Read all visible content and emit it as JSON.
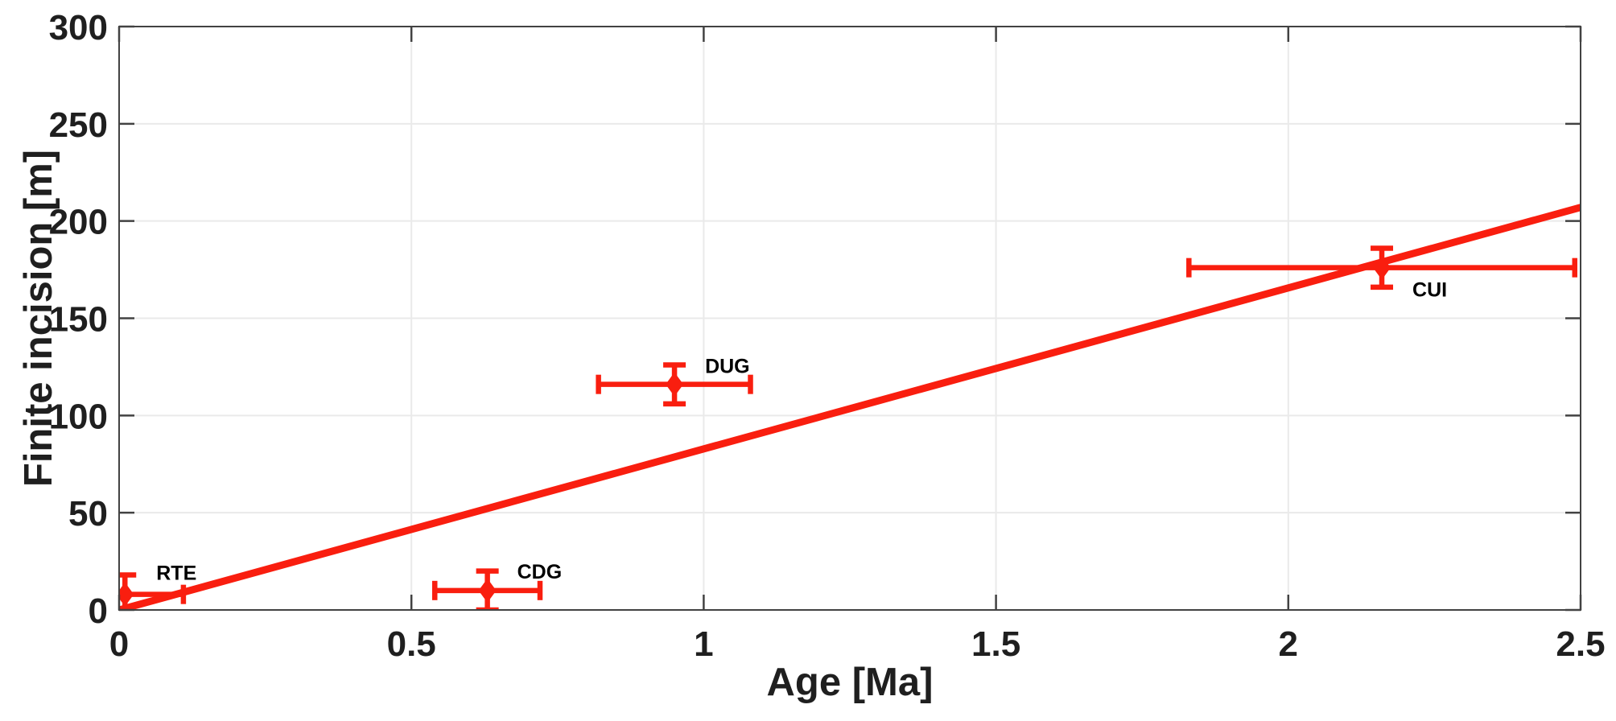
{
  "chart_data": {
    "type": "scatter",
    "title": "",
    "xlabel": "Age [Ma]",
    "ylabel": "Finite incision [m]",
    "xlim": [
      0,
      2.5
    ],
    "ylim": [
      0,
      300
    ],
    "grid": true,
    "legend": "none",
    "xticks": [
      {
        "v": 0,
        "label": "0"
      },
      {
        "v": 0.5,
        "label": "0.5"
      },
      {
        "v": 1,
        "label": "1"
      },
      {
        "v": 1.5,
        "label": "1.5"
      },
      {
        "v": 2,
        "label": "2"
      },
      {
        "v": 2.5,
        "label": "2.5"
      }
    ],
    "yticks": [
      {
        "v": 0,
        "label": "0"
      },
      {
        "v": 50,
        "label": "50"
      },
      {
        "v": 100,
        "label": "100"
      },
      {
        "v": 150,
        "label": "150"
      },
      {
        "v": 200,
        "label": "200"
      },
      {
        "v": 250,
        "label": "250"
      },
      {
        "v": 300,
        "label": "300"
      }
    ],
    "series": [
      {
        "name": "incision-sites",
        "marker": "diamond",
        "points": [
          {
            "label": "RTE",
            "x": 0.01,
            "y": 8,
            "xerr": 0.1,
            "yerr": 10,
            "label_dx": 39,
            "label_dy": -18
          },
          {
            "label": "CDG",
            "x": 0.63,
            "y": 10,
            "xerr": 0.09,
            "yerr": 10,
            "label_dx": 37,
            "label_dy": -15
          },
          {
            "label": "DUG",
            "x": 0.95,
            "y": 116,
            "xerr": 0.13,
            "yerr": 10,
            "label_dx": 38,
            "label_dy": -14
          },
          {
            "label": "CUI",
            "x": 2.16,
            "y": 176,
            "xerr": 0.33,
            "yerr": 10,
            "label_dx": 38,
            "label_dy": 36
          }
        ]
      }
    ],
    "trendline": {
      "name": "regression-line",
      "x1": 0,
      "y1": 0,
      "x2": 2.5,
      "y2": 207
    }
  },
  "colors": {
    "accent_red": "#f91e0f",
    "axis": "#424242",
    "grid": "#eaeaea",
    "tick_text": "#1f1f1f",
    "point_label_text": "#000000",
    "background": "#ffffff"
  }
}
